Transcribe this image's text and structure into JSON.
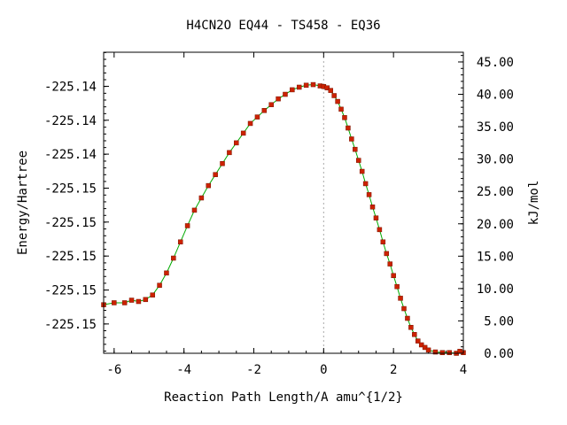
{
  "chart_data": {
    "type": "scatter",
    "title": "H4CN2O   EQ44 - TS458 - EQ36",
    "xlabel": "Reaction Path Length/A amu^{1/2}",
    "ylabel": "Energy/Hartree",
    "y2label": "kJ/mol",
    "xlim": [
      -6.3,
      4.0
    ],
    "y2lim": [
      0.0,
      46.5
    ],
    "x_ticks": [
      "-6",
      "-4",
      "-2",
      "0",
      "2",
      "4"
    ],
    "x_tick_values": [
      -6,
      -4,
      -2,
      0,
      2,
      4
    ],
    "y_ticks": [
      "-225.14",
      "-225.14",
      "-225.14",
      "-225.15",
      "-225.15",
      "-225.15",
      "-225.15",
      "-225.15"
    ],
    "y_tick_values_kjmol": [
      41.24,
      36.0,
      30.76,
      25.51,
      20.27,
      15.02,
      9.77,
      4.53
    ],
    "y2_ticks": [
      "45.00",
      "40.00",
      "35.00",
      "30.00",
      "25.00",
      "20.00",
      "15.00",
      "10.00",
      "5.00",
      "0.00"
    ],
    "y2_tick_values": [
      45,
      40,
      35,
      30,
      25,
      20,
      15,
      10,
      5,
      0
    ],
    "ts_x": 0,
    "grid": false,
    "colors": {
      "points": "#cc2200",
      "line": "#00aa00",
      "ts_line": "#aaaaaa"
    },
    "series": [
      {
        "x": [
          -6.3,
          -6.0,
          -5.7,
          -5.5,
          -5.3,
          -5.1,
          -4.9,
          -4.7,
          -4.5,
          -4.3,
          -4.1,
          -3.9,
          -3.7,
          -3.5,
          -3.3,
          -3.1,
          -2.9,
          -2.7,
          -2.5,
          -2.3,
          -2.1,
          -1.9,
          -1.7,
          -1.5,
          -1.3,
          -1.1,
          -0.9,
          -0.7,
          -0.5,
          -0.3,
          -0.1,
          0.0,
          0.1,
          0.2,
          0.3,
          0.4,
          0.5,
          0.6,
          0.7,
          0.8,
          0.9,
          1.0,
          1.1,
          1.2,
          1.3,
          1.4,
          1.5,
          1.6,
          1.7,
          1.8,
          1.9,
          2.0,
          2.1,
          2.2,
          2.3,
          2.4,
          2.5,
          2.6,
          2.7,
          2.8,
          2.9,
          3.0,
          3.2,
          3.4,
          3.6,
          3.8,
          3.9,
          4.0
        ],
        "y": [
          7.5,
          7.8,
          7.8,
          8.2,
          8.0,
          8.3,
          9.0,
          10.5,
          12.4,
          14.7,
          17.2,
          19.7,
          22.1,
          24.0,
          25.9,
          27.6,
          29.3,
          31.0,
          32.5,
          34.0,
          35.5,
          36.5,
          37.5,
          38.4,
          39.3,
          40.0,
          40.7,
          41.1,
          41.4,
          41.5,
          41.3,
          41.2,
          41.0,
          40.6,
          39.8,
          38.9,
          37.7,
          36.4,
          34.8,
          33.1,
          31.5,
          29.8,
          28.1,
          26.2,
          24.5,
          22.6,
          20.9,
          19.1,
          17.2,
          15.4,
          13.8,
          12.0,
          10.3,
          8.5,
          6.9,
          5.4,
          4.0,
          2.9,
          1.9,
          1.3,
          0.9,
          0.5,
          0.2,
          0.1,
          0.1,
          0.0,
          0.3,
          0.1
        ]
      }
    ]
  }
}
